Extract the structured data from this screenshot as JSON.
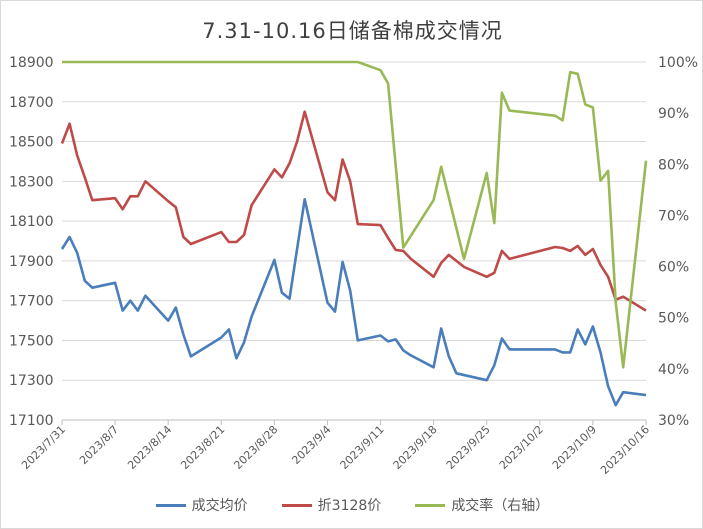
{
  "chart_data": {
    "type": "line",
    "title": "7.31-10.16日储备棉成交情况",
    "x_ticks": [
      "2023/7/31",
      "2023/8/7",
      "2023/8/14",
      "2023/8/21",
      "2023/8/28",
      "2023/9/4",
      "2023/9/11",
      "2023/9/18",
      "2023/9/25",
      "2023/10/2",
      "2023/10/9",
      "2023/10/16"
    ],
    "x_unit": "days since 2023/7/31",
    "y_left": {
      "min": 17100,
      "max": 18900,
      "step": 200,
      "ticks": [
        "17100",
        "17300",
        "17500",
        "17700",
        "17900",
        "18100",
        "18300",
        "18500",
        "18700",
        "18900"
      ]
    },
    "y_right": {
      "min": 30,
      "max": 100,
      "step": 10,
      "ticks": [
        "30%",
        "40%",
        "50%",
        "60%",
        "70%",
        "80%",
        "90%",
        "100%"
      ]
    },
    "grid": true,
    "legend_position": "bottom",
    "series": [
      {
        "name": "成交均价",
        "axis": "left",
        "color": "#4a7ebb",
        "x": [
          0,
          1,
          2,
          3,
          4,
          7,
          8,
          9,
          10,
          11,
          14,
          15,
          16,
          17,
          21,
          22,
          23,
          24,
          25,
          28,
          29,
          30,
          32,
          35,
          36,
          37,
          38,
          39,
          42,
          43,
          44,
          45,
          46,
          49,
          50,
          51,
          52,
          56,
          57,
          58,
          59,
          65,
          66,
          67,
          68,
          69,
          70,
          71,
          72,
          73,
          74,
          77
        ],
        "y": [
          17960,
          18020,
          17940,
          17800,
          17765,
          17790,
          17650,
          17700,
          17650,
          17725,
          17600,
          17665,
          17530,
          17420,
          17515,
          17555,
          17410,
          17490,
          17620,
          17905,
          17740,
          17710,
          18210,
          17690,
          17645,
          17895,
          17750,
          17500,
          17525,
          17495,
          17505,
          17450,
          17425,
          17365,
          17560,
          17420,
          17335,
          17300,
          17375,
          17510,
          17455,
          17455,
          17440,
          17440,
          17555,
          17480,
          17570,
          17440,
          17270,
          17175,
          17240,
          17225
        ]
      },
      {
        "name": "折3128价",
        "axis": "left",
        "color": "#be4b48",
        "x": [
          0,
          1,
          2,
          3,
          4,
          7,
          8,
          9,
          10,
          11,
          14,
          15,
          16,
          17,
          21,
          22,
          23,
          24,
          25,
          28,
          29,
          30,
          31,
          32,
          35,
          36,
          37,
          38,
          39,
          42,
          43,
          44,
          45,
          46,
          49,
          50,
          51,
          52,
          53,
          56,
          57,
          58,
          59,
          65,
          66,
          67,
          68,
          69,
          70,
          71,
          72,
          73,
          74,
          77
        ],
        "y": [
          18490,
          18590,
          18430,
          18320,
          18205,
          18215,
          18160,
          18225,
          18225,
          18300,
          18200,
          18170,
          18020,
          17985,
          18045,
          17995,
          17995,
          18030,
          18180,
          18360,
          18320,
          18390,
          18500,
          18650,
          18245,
          18205,
          18410,
          18300,
          18085,
          18080,
          18015,
          17955,
          17950,
          17910,
          17820,
          17890,
          17930,
          17900,
          17870,
          17820,
          17840,
          17950,
          17910,
          17970,
          17965,
          17950,
          17975,
          17930,
          17960,
          17880,
          17820,
          17705,
          17720,
          17650
        ]
      },
      {
        "name": "成交率（右轴）",
        "axis": "right",
        "color": "#98b954",
        "x": [
          0,
          39,
          42,
          43,
          45,
          49,
          50,
          53,
          56,
          57,
          58,
          59,
          65,
          66,
          67,
          68,
          69,
          70,
          71,
          72,
          73,
          74,
          77
        ],
        "y": [
          100,
          100,
          98.4,
          95.8,
          63.7,
          73,
          79.5,
          61.5,
          78.3,
          68.5,
          94,
          90.5,
          89.5,
          88.6,
          98,
          97.7,
          91.7,
          91.1,
          76.8,
          78.7,
          53,
          40.3,
          80.7
        ]
      }
    ]
  }
}
